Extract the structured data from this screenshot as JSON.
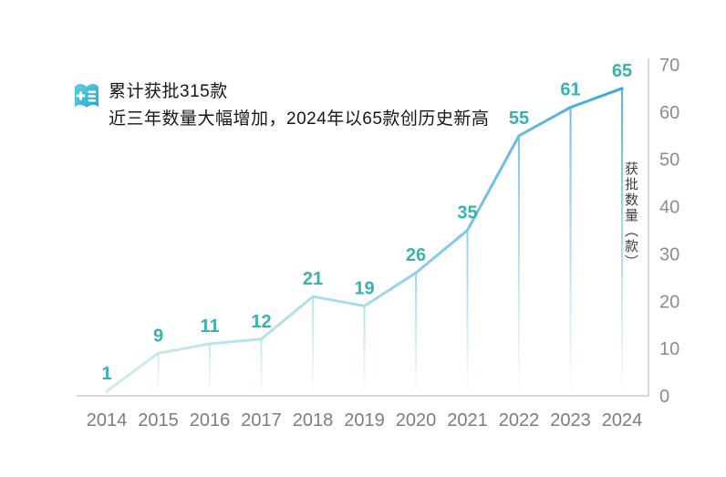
{
  "header": {
    "icon": "journal-plus-icon",
    "title": "累计获批315款",
    "subtitle": "近三年数量大幅增加，2024年以65款创历史新高"
  },
  "chart_data": {
    "type": "line",
    "title": "累计获批315款",
    "subtitle": "近三年数量大幅增加，2024年以65款创历史新高",
    "categories": [
      "2014",
      "2015",
      "2016",
      "2017",
      "2018",
      "2019",
      "2020",
      "2021",
      "2022",
      "2023",
      "2024"
    ],
    "values": [
      1,
      9,
      11,
      12,
      21,
      19,
      26,
      35,
      55,
      61,
      65
    ],
    "cumulative_total": 315,
    "xlabel": "",
    "ylabel": "获批数量（款）",
    "ylim": [
      0,
      70
    ],
    "yticks": [
      0,
      10,
      20,
      30,
      40,
      50,
      60,
      70
    ],
    "y_axis_side": "right",
    "grid": false,
    "legend_position": "none",
    "data_labels": true,
    "drop_lines": true
  },
  "colors": {
    "line_gradient": [
      "#cfebea",
      "#a6dbe6",
      "#3aa6df"
    ],
    "data_label": "#38b2af",
    "axis_line": "#d9d9d9",
    "y_tick_label": "#8c8c8c",
    "x_tick_label": "#7d7d7d",
    "header_text": "#161616",
    "y_title": "#3c3c3c",
    "icon_gradient": [
      "#5ed2dd",
      "#2ba4d6"
    ]
  }
}
